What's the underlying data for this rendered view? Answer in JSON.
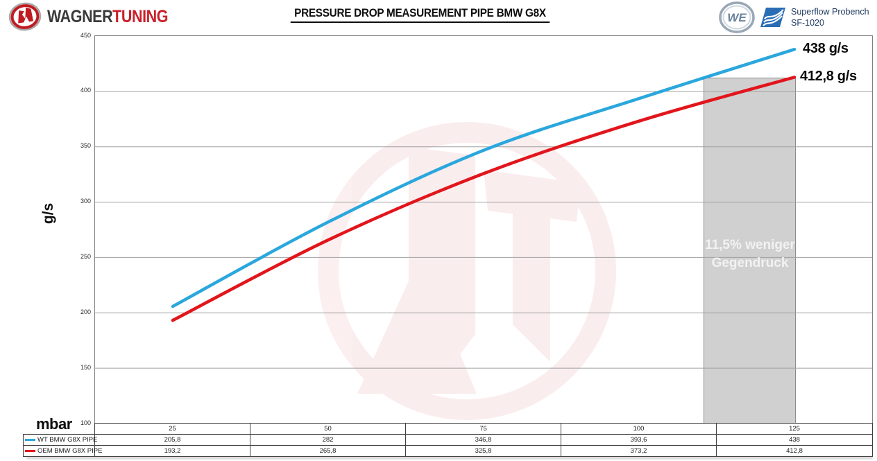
{
  "header": {
    "brand": {
      "wagner": "WAGNER",
      "tuning": "TUNING"
    },
    "title": "PRESSURE DROP MEASUREMENT PIPE BMW G8X",
    "bench": {
      "line1": "Superflow Probench",
      "line2": "SF-1020"
    }
  },
  "chart_data": {
    "type": "line",
    "x": [
      25,
      50,
      75,
      100,
      125
    ],
    "x_labels": [
      "25",
      "50",
      "75",
      "100",
      "125"
    ],
    "xlabel": "mbar",
    "ylabel": "g/s",
    "ylim": [
      100,
      450
    ],
    "yticks": [
      450,
      400,
      350,
      300,
      250,
      200,
      150,
      100
    ],
    "grid": true,
    "legend_position": "bottom-table",
    "series": [
      {
        "name": "WT BMW G8X PIPE",
        "color": "#2aa7dd",
        "values": [
          205.8,
          282,
          346.8,
          393.6,
          438
        ],
        "display_values": [
          "205,8",
          "282",
          "346,8",
          "393,6",
          "438"
        ],
        "end_label": "438 g/s"
      },
      {
        "name": "OEM BMW G8X PIPE",
        "color": "#e2151c",
        "values": [
          193.2,
          265.8,
          325.8,
          373.2,
          412.8
        ],
        "display_values": [
          "193,2",
          "265,8",
          "325,8",
          "373,2",
          "412,8"
        ],
        "end_label": "412,8 g/s"
      }
    ],
    "annotation_band": {
      "line1": "11,5% weniger",
      "line2": "Gegendruck",
      "x_range_px_note": "highlight band at rightmost column",
      "fill": "#d0d0d0"
    },
    "colors": {
      "gridline": "#a0a0a0",
      "plot_border": "#808080",
      "table_border": "#3f3f3f",
      "watermark": "#c4161c"
    }
  }
}
